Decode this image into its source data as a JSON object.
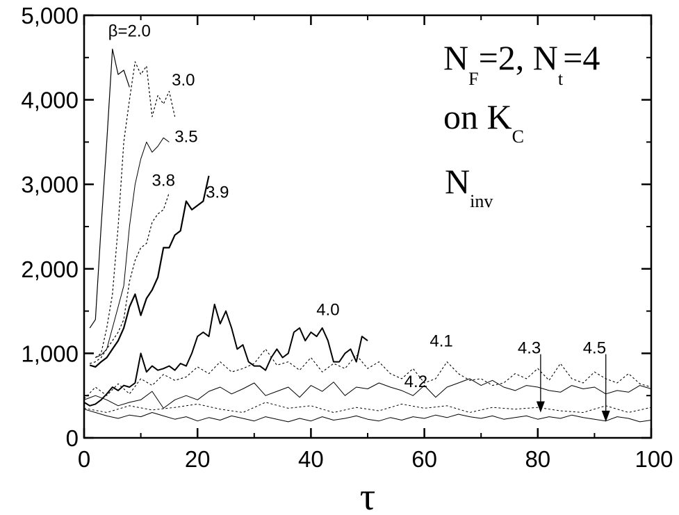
{
  "chart_data": {
    "type": "line",
    "title": "",
    "xlabel": "τ",
    "ylabel": "",
    "xlim": [
      0,
      100
    ],
    "ylim": [
      0,
      5000
    ],
    "grid": false,
    "x_ticks": [
      {
        "value": 0,
        "label": "0"
      },
      {
        "value": 20,
        "label": "20"
      },
      {
        "value": 40,
        "label": "40"
      },
      {
        "value": 60,
        "label": "60"
      },
      {
        "value": 80,
        "label": "80"
      },
      {
        "value": 100,
        "label": "100"
      }
    ],
    "y_ticks": [
      {
        "value": 0,
        "label": "0"
      },
      {
        "value": 1000,
        "label": "1,000"
      },
      {
        "value": 2000,
        "label": "2,000"
      },
      {
        "value": 3000,
        "label": "3,000"
      },
      {
        "value": 4000,
        "label": "4,000"
      },
      {
        "value": 5000,
        "label": "5,000"
      }
    ],
    "annotation": {
      "line1": {
        "N1": "N",
        "sub1": "F",
        "mid": "=2, N",
        "sub2": "t",
        "end": "=4"
      },
      "line2": {
        "text": "on K",
        "sub": "C"
      },
      "line3": {
        "text": "N",
        "sub": "inv"
      }
    },
    "series": [
      {
        "name": "β=2.0",
        "style": "solid",
        "width": 1.2,
        "x": [
          1,
          2,
          3,
          4,
          5,
          6,
          7,
          8
        ],
        "y": [
          1300,
          1400,
          2500,
          3500,
          4600,
          4300,
          4350,
          4150
        ],
        "label": {
          "x": 8,
          "y": 4750
        }
      },
      {
        "name": "3.0",
        "style": "dotted",
        "width": 1.2,
        "x": [
          2,
          3,
          4,
          5,
          6,
          7,
          8,
          9,
          10,
          11,
          12,
          13,
          14,
          15,
          16
        ],
        "y": [
          950,
          1000,
          1300,
          1700,
          2500,
          3500,
          4000,
          4450,
          4300,
          4400,
          3800,
          4050,
          3950,
          4100,
          3800
        ],
        "label": {
          "x": 17.5,
          "y": 4170
        }
      },
      {
        "name": "3.5",
        "style": "solid",
        "width": 1.0,
        "x": [
          2,
          3,
          4,
          5,
          6,
          7,
          8,
          9,
          10,
          11,
          12,
          13,
          14,
          15
        ],
        "y": [
          950,
          980,
          1050,
          1300,
          1550,
          1800,
          2500,
          3000,
          3300,
          3500,
          3380,
          3450,
          3550,
          3500
        ],
        "label": {
          "x": 18,
          "y": 3500
        }
      },
      {
        "name": "3.8",
        "style": "dotted",
        "width": 1.2,
        "x": [
          1,
          2,
          3,
          4,
          5,
          6,
          7,
          8,
          9,
          10,
          11,
          12,
          13,
          14,
          15
        ],
        "y": [
          880,
          900,
          950,
          1050,
          1150,
          1250,
          1400,
          1850,
          2100,
          2250,
          2300,
          2550,
          2650,
          2700,
          2900
        ],
        "label": {
          "x": 14,
          "y": 2980
        }
      },
      {
        "name": "3.9",
        "style": "solid",
        "width": 2.2,
        "x": [
          1,
          2,
          3,
          4,
          5,
          6,
          7,
          8,
          9,
          10,
          11,
          12,
          13,
          14,
          15,
          16,
          17,
          18,
          19,
          20,
          21,
          22
        ],
        "y": [
          860,
          840,
          900,
          950,
          1050,
          1150,
          1300,
          1550,
          1700,
          1450,
          1650,
          1750,
          1900,
          2250,
          2250,
          2400,
          2450,
          2800,
          2700,
          2750,
          2800,
          3100
        ],
        "label": {
          "x": 23.5,
          "y": 2840
        }
      },
      {
        "name": "4.0",
        "style": "solid",
        "width": 2.0,
        "x": [
          0,
          1,
          2,
          3,
          4,
          5,
          6,
          7,
          8,
          9,
          10,
          11,
          12,
          13,
          14,
          15,
          16,
          17,
          18,
          19,
          20,
          21,
          22,
          23,
          24,
          25,
          26,
          27,
          28,
          29,
          30,
          31,
          32,
          33,
          34,
          35,
          36,
          37,
          38,
          39,
          40,
          41,
          42,
          43,
          44,
          45,
          46,
          47,
          48,
          49,
          50
        ],
        "y": [
          420,
          380,
          400,
          450,
          520,
          600,
          560,
          620,
          600,
          650,
          1000,
          780,
          850,
          800,
          820,
          850,
          800,
          880,
          850,
          1000,
          1200,
          1250,
          1200,
          1580,
          1350,
          1500,
          1300,
          1050,
          1100,
          900,
          850,
          850,
          800,
          950,
          1050,
          950,
          1000,
          1250,
          1300,
          1150,
          1250,
          1200,
          1300,
          1150,
          900,
          900,
          1000,
          1050,
          900,
          1200,
          1150
        ],
        "label": {
          "x": 43,
          "y": 1450
        }
      },
      {
        "name": "4.1",
        "style": "dotted",
        "width": 1.1,
        "x": [
          0,
          2,
          4,
          6,
          8,
          10,
          12,
          14,
          16,
          18,
          20,
          22,
          24,
          26,
          28,
          30,
          32,
          34,
          36,
          38,
          40,
          42,
          44,
          46,
          48,
          50,
          52,
          54,
          56,
          58,
          60,
          62,
          64,
          66,
          68,
          70,
          72,
          74,
          76,
          78,
          80,
          82,
          84,
          86,
          88,
          90,
          92,
          94,
          96,
          98,
          100
        ],
        "y": [
          460,
          600,
          500,
          640,
          520,
          700,
          620,
          750,
          680,
          720,
          840,
          760,
          900,
          780,
          820,
          880,
          1050,
          860,
          900,
          800,
          950,
          780,
          880,
          820,
          980,
          820,
          900,
          760,
          700,
          820,
          650,
          700,
          900,
          760,
          680,
          700,
          620,
          650,
          760,
          700,
          820,
          680,
          880,
          700,
          650,
          780,
          700,
          650,
          760,
          640,
          600
        ],
        "label": {
          "x": 63,
          "y": 1080
        }
      },
      {
        "name": "4.2",
        "style": "solid",
        "width": 1.0,
        "x": [
          0,
          2,
          4,
          6,
          8,
          10,
          12,
          14,
          16,
          18,
          20,
          22,
          24,
          26,
          28,
          30,
          32,
          34,
          36,
          38,
          40,
          42,
          44,
          46,
          48,
          50,
          52,
          54,
          56,
          58,
          60,
          62,
          64,
          66,
          68,
          70,
          72,
          74,
          76,
          78,
          80,
          82,
          84,
          86,
          88,
          90,
          92,
          94,
          96,
          98,
          100
        ],
        "y": [
          450,
          500,
          450,
          380,
          420,
          450,
          550,
          350,
          450,
          500,
          450,
          550,
          600,
          520,
          580,
          650,
          500,
          550,
          600,
          480,
          620,
          550,
          660,
          500,
          600,
          580,
          650,
          600,
          560,
          500,
          620,
          480,
          600,
          650,
          700,
          620,
          680,
          600,
          560,
          620,
          600,
          560,
          540,
          620,
          580,
          600,
          520,
          560,
          540,
          620,
          580
        ],
        "label": {
          "x": 58.5,
          "y": 600
        }
      },
      {
        "name": "4.3",
        "style": "dotted",
        "width": 1.0,
        "x": [
          0,
          4,
          8,
          12,
          16,
          20,
          24,
          28,
          32,
          36,
          40,
          44,
          48,
          52,
          56,
          60,
          64,
          68,
          72,
          76,
          80,
          84,
          88,
          92,
          96,
          100
        ],
        "y": [
          350,
          300,
          380,
          330,
          360,
          400,
          340,
          300,
          420,
          350,
          380,
          300,
          360,
          320,
          400,
          350,
          380,
          300,
          360,
          340,
          360,
          320,
          300,
          380,
          300,
          360
        ],
        "label": {
          "x": 78.5,
          "y": 1000
        }
      },
      {
        "name": "4.5",
        "style": "solid",
        "width": 1.0,
        "x": [
          0,
          2,
          4,
          6,
          8,
          10,
          12,
          14,
          16,
          18,
          20,
          22,
          24,
          26,
          28,
          30,
          32,
          34,
          36,
          38,
          40,
          42,
          44,
          46,
          48,
          50,
          52,
          54,
          56,
          58,
          60,
          62,
          64,
          66,
          68,
          70,
          72,
          74,
          76,
          78,
          80,
          82,
          84,
          86,
          88,
          90,
          92,
          94,
          96,
          98,
          100
        ],
        "y": [
          340,
          300,
          260,
          230,
          270,
          250,
          300,
          260,
          220,
          250,
          200,
          240,
          210,
          260,
          230,
          200,
          250,
          220,
          190,
          230,
          200,
          250,
          210,
          230,
          260,
          220,
          200,
          240,
          210,
          250,
          230,
          270,
          240,
          280,
          250,
          230,
          260,
          220,
          240,
          260,
          220,
          250,
          230,
          270,
          240,
          220,
          200,
          250,
          230,
          190,
          210
        ],
        "label": {
          "x": 90,
          "y": 1000
        }
      }
    ],
    "arrows": [
      {
        "for": "4.3",
        "x": 80.5,
        "y_from": 990,
        "y_to": 300
      },
      {
        "for": "4.5",
        "x": 92,
        "y_from": 990,
        "y_to": 190
      }
    ]
  }
}
